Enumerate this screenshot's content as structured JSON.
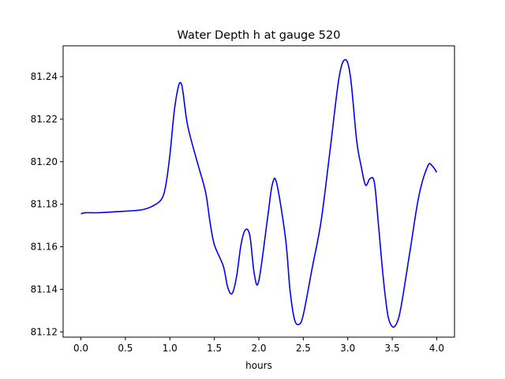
{
  "chart_data": {
    "type": "line",
    "title": "Water Depth h at gauge 520",
    "xlabel": "hours",
    "ylabel": "",
    "xlim": [
      -0.2,
      4.2
    ],
    "ylim": [
      81.1175,
      81.2545
    ],
    "xticks": [
      0.0,
      0.5,
      1.0,
      1.5,
      2.0,
      2.5,
      3.0,
      3.5,
      4.0
    ],
    "xtick_labels": [
      "0.0",
      "0.5",
      "1.0",
      "1.5",
      "2.0",
      "2.5",
      "3.0",
      "3.5",
      "4.0"
    ],
    "yticks": [
      81.12,
      81.14,
      81.16,
      81.18,
      81.2,
      81.22,
      81.24
    ],
    "ytick_labels": [
      "81.12",
      "81.14",
      "81.16",
      "81.18",
      "81.20",
      "81.22",
      "81.24"
    ],
    "grid": false,
    "series": [
      {
        "color": "#0000ff",
        "x": [
          0.0,
          0.05,
          0.2,
          0.4,
          0.6,
          0.7,
          0.8,
          0.9,
          0.95,
          1.0,
          1.05,
          1.1,
          1.13,
          1.15,
          1.2,
          1.3,
          1.4,
          1.45,
          1.5,
          1.6,
          1.65,
          1.7,
          1.75,
          1.8,
          1.85,
          1.9,
          1.95,
          2.0,
          2.1,
          2.15,
          2.2,
          2.3,
          2.35,
          2.4,
          2.45,
          2.5,
          2.6,
          2.7,
          2.8,
          2.9,
          2.97,
          3.03,
          3.1,
          3.15,
          3.2,
          3.25,
          3.3,
          3.35,
          3.4,
          3.45,
          3.5,
          3.55,
          3.6,
          3.7,
          3.8,
          3.9,
          3.95,
          4.0
        ],
        "y": [
          81.1755,
          81.176,
          81.176,
          81.1765,
          81.177,
          81.1775,
          81.179,
          81.182,
          81.188,
          81.203,
          81.224,
          81.236,
          81.2365,
          81.232,
          81.217,
          81.201,
          81.186,
          81.172,
          81.161,
          81.151,
          81.141,
          81.138,
          81.146,
          81.161,
          81.168,
          81.165,
          81.147,
          81.144,
          81.174,
          81.189,
          81.19,
          81.164,
          81.14,
          81.126,
          81.1235,
          81.128,
          81.15,
          81.172,
          81.205,
          81.239,
          81.248,
          81.24,
          81.21,
          81.198,
          81.189,
          81.192,
          81.19,
          81.168,
          81.145,
          81.128,
          81.1225,
          81.124,
          81.132,
          81.158,
          81.184,
          81.198,
          81.198,
          81.195
        ]
      }
    ]
  }
}
